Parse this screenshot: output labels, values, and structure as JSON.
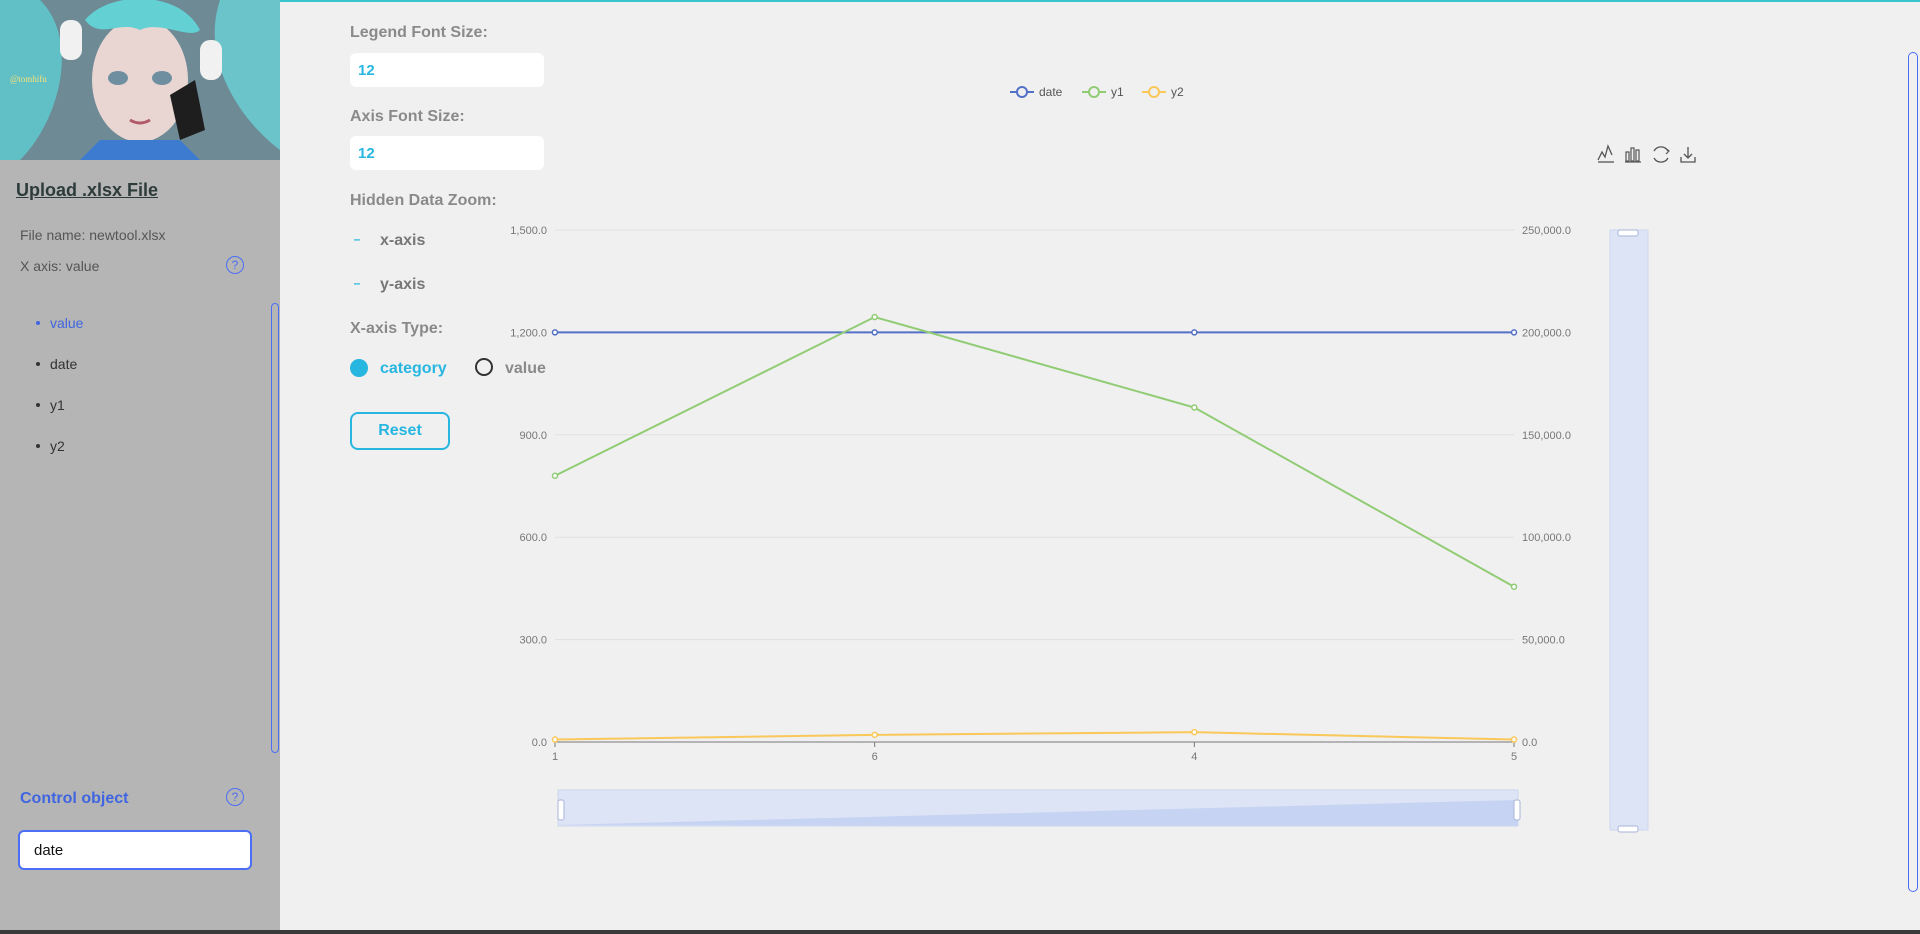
{
  "sidebar": {
    "upload_title": "Upload .xlsx File",
    "file_name": "File name: newtool.xlsx",
    "x_axis": "X axis: value",
    "help_glyph": "?",
    "columns": [
      "value",
      "date",
      "y1",
      "y2"
    ],
    "active_column": "value",
    "control_title": "Control object",
    "control_value": "date",
    "avatar_watermark": "@tomhifu"
  },
  "controls": {
    "legend_font_label": "Legend Font Size:",
    "legend_font_value": "12",
    "axis_font_label": "Axis Font Size:",
    "axis_font_value": "12",
    "hidden_zoom_label": "Hidden Data Zoom:",
    "x_axis_check": "x-axis",
    "y_axis_check": "y-axis",
    "check_glyph": "–",
    "xaxis_type_label": "X-axis Type:",
    "radio_category": "category",
    "radio_value": "value",
    "selected_type": "category",
    "reset_label": "Reset"
  },
  "colors": {
    "date": "#5470c6",
    "y1": "#91cc75",
    "y2": "#fac858",
    "accent": "#26b6e0",
    "brand": "#3f65e0"
  },
  "chart_data": {
    "type": "line",
    "categories": [
      "1",
      "6",
      "4",
      "5"
    ],
    "legend": [
      "date",
      "y1",
      "y2"
    ],
    "legend_position": "top-center",
    "y_left": {
      "ticks": [
        "0.0",
        "300.0",
        "600.0",
        "900.0",
        "1,200.0",
        "1,500.0"
      ],
      "range": [
        0,
        1500
      ]
    },
    "y_right": {
      "ticks": [
        "0.0",
        "50,000.0",
        "100,000.0",
        "150,000.0",
        "200,000.0",
        "250,000.0"
      ],
      "range": [
        0,
        250000
      ]
    },
    "series": [
      {
        "name": "date",
        "axis": "right",
        "values": [
          200000,
          200000,
          200000,
          200000
        ]
      },
      {
        "name": "y1",
        "axis": "left",
        "values": [
          780,
          1245,
          980,
          455
        ]
      },
      {
        "name": "y2",
        "axis": "right",
        "values": [
          1200,
          3500,
          4800,
          1200
        ]
      }
    ],
    "grid": true,
    "toolbox": [
      "line-chart-icon",
      "bar-chart-icon",
      "restore-icon",
      "download-icon"
    ]
  }
}
